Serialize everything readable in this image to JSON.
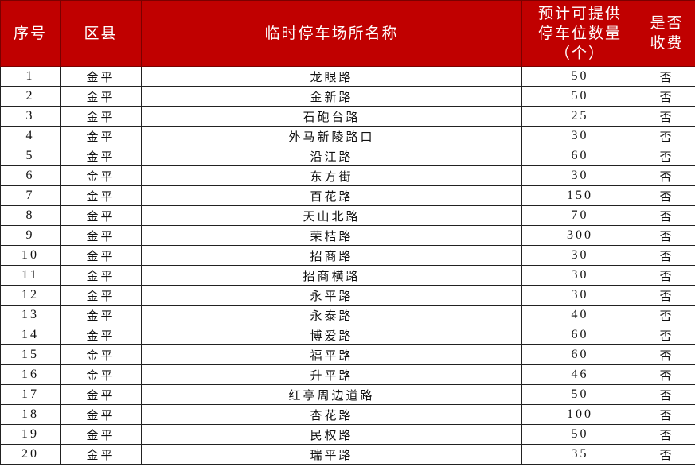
{
  "header": {
    "index": "序号",
    "district": "区县",
    "name": "临时停车场所名称",
    "spaces": "预计可提供停车位数量（个）",
    "fee": "是否收费"
  },
  "colors": {
    "header_bg": "#c00000",
    "header_text": "#ffffff"
  },
  "rows": [
    {
      "index": "1",
      "district": "金平",
      "name": "龙眼路",
      "spaces": "50",
      "fee": "否"
    },
    {
      "index": "2",
      "district": "金平",
      "name": "金新路",
      "spaces": "50",
      "fee": "否"
    },
    {
      "index": "3",
      "district": "金平",
      "name": "石砲台路",
      "spaces": "25",
      "fee": "否"
    },
    {
      "index": "4",
      "district": "金平",
      "name": "外马新陵路口",
      "spaces": "30",
      "fee": "否"
    },
    {
      "index": "5",
      "district": "金平",
      "name": "沿江路",
      "spaces": "60",
      "fee": "否"
    },
    {
      "index": "6",
      "district": "金平",
      "name": "东方街",
      "spaces": "30",
      "fee": "否"
    },
    {
      "index": "7",
      "district": "金平",
      "name": "百花路",
      "spaces": "150",
      "fee": "否"
    },
    {
      "index": "8",
      "district": "金平",
      "name": "天山北路",
      "spaces": "70",
      "fee": "否"
    },
    {
      "index": "9",
      "district": "金平",
      "name": "荣桔路",
      "spaces": "300",
      "fee": "否"
    },
    {
      "index": "10",
      "district": "金平",
      "name": "招商路",
      "spaces": "30",
      "fee": "否"
    },
    {
      "index": "11",
      "district": "金平",
      "name": "招商横路",
      "spaces": "30",
      "fee": "否"
    },
    {
      "index": "12",
      "district": "金平",
      "name": "永平路",
      "spaces": "30",
      "fee": "否"
    },
    {
      "index": "13",
      "district": "金平",
      "name": "永泰路",
      "spaces": "40",
      "fee": "否"
    },
    {
      "index": "14",
      "district": "金平",
      "name": "博爱路",
      "spaces": "60",
      "fee": "否"
    },
    {
      "index": "15",
      "district": "金平",
      "name": "福平路",
      "spaces": "60",
      "fee": "否"
    },
    {
      "index": "16",
      "district": "金平",
      "name": "升平路",
      "spaces": "46",
      "fee": "否"
    },
    {
      "index": "17",
      "district": "金平",
      "name": "红亭周边道路",
      "spaces": "50",
      "fee": "否"
    },
    {
      "index": "18",
      "district": "金平",
      "name": "杏花路",
      "spaces": "100",
      "fee": "否"
    },
    {
      "index": "19",
      "district": "金平",
      "name": "民权路",
      "spaces": "50",
      "fee": "否"
    },
    {
      "index": "20",
      "district": "金平",
      "name": "瑞平路",
      "spaces": "35",
      "fee": "否"
    }
  ]
}
